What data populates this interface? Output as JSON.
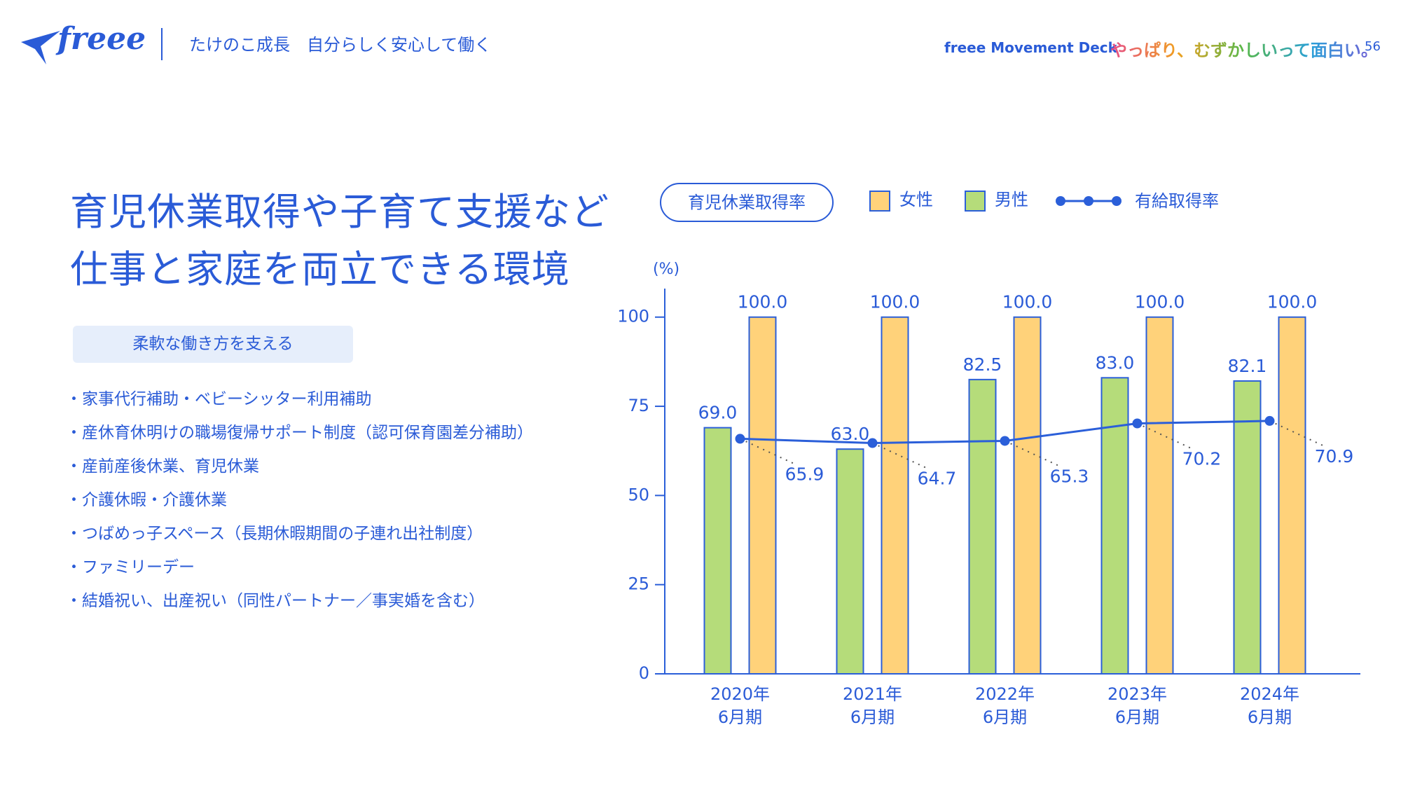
{
  "header": {
    "logo": "freee",
    "section": "たけのこ成長　自分らしく安心して働く",
    "deck": "freee Movement Deck",
    "slogan": "やっぱり、むずかしいって面白い。",
    "page": "56"
  },
  "heading": [
    "育児休業取得や子育て支援など",
    "仕事と家庭を両立できる環境"
  ],
  "tag": "柔軟な働き方を支える",
  "bullets": [
    "・家事代行補助・ベビーシッター利用補助",
    "・産休育休明けの職場復帰サポート制度（認可保育園差分補助）",
    "・産前産後休業、育児休業",
    "・介護休暇・介護休業",
    "・つばめっ子スペース（長期休暇期間の子連れ出社制度）",
    "・ファミリーデー",
    "・結婚祝い、出産祝い（同性パートナー／事実婚を含む）"
  ],
  "chart_data": {
    "type": "bar-line",
    "title": "育児休業取得率",
    "ylabel": "(%)",
    "categories": [
      "2020年\n6月期",
      "2021年\n6月期",
      "2022年\n6月期",
      "2023年\n6月期",
      "2024年\n6月期"
    ],
    "series": [
      {
        "name": "男性",
        "color": "#b5dc7a",
        "values": [
          69.0,
          63.0,
          82.5,
          83.0,
          82.1
        ],
        "value_labels": [
          "69.0",
          "63.0",
          "82.5",
          "83.0",
          "82.1"
        ]
      },
      {
        "name": "女性",
        "color": "#ffd27a",
        "values": [
          100,
          100,
          100,
          100,
          100
        ],
        "value_labels": [
          "100.0",
          "100.0",
          "100.0",
          "100.0",
          "100.0"
        ]
      },
      {
        "name": "有給取得率",
        "color": "#2b5fd9",
        "type": "line",
        "values": [
          65.9,
          64.7,
          65.3,
          70.2,
          70.9
        ]
      }
    ],
    "ylim": [
      0,
      108
    ],
    "yticks": [
      0,
      25,
      50,
      75,
      100
    ]
  }
}
